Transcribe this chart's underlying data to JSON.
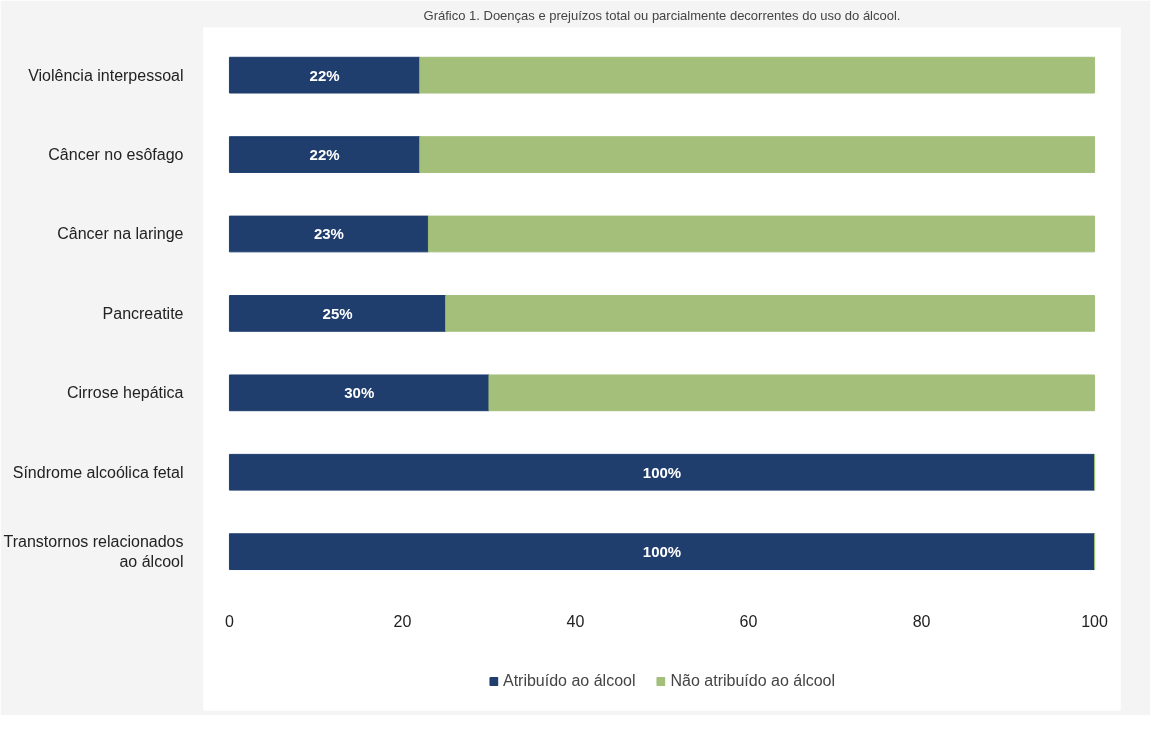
{
  "chart_data": {
    "type": "bar",
    "orientation": "horizontal",
    "stacked": true,
    "title": "Gráfico 1. Doenças e prejuízos total ou parcialmente decorrentes do uso do álcool.",
    "categories": [
      "Violência interpessoal",
      "Câncer no esôfago",
      "Câncer na laringe",
      "Pancreatite",
      "Cirrose hepática",
      "Síndrome alcoólica fetal",
      "Transtornos relacionados ao álcool"
    ],
    "series": [
      {
        "name": "Atribuído ao álcool",
        "color": "#1f3e6e",
        "values": [
          22,
          22,
          23,
          25,
          30,
          100,
          100
        ],
        "value_labels": [
          "22%",
          "22%",
          "23%",
          "25%",
          "30%",
          "100%",
          "100%"
        ]
      },
      {
        "name": "Não atribuído ao álcool",
        "color": "#a3bf7a",
        "values": [
          78,
          78,
          77,
          75,
          70,
          0,
          0
        ]
      }
    ],
    "xlim": [
      0,
      100
    ],
    "xticks": [
      0,
      20,
      40,
      60,
      80,
      100
    ],
    "grid": false,
    "legend": "bottom"
  }
}
